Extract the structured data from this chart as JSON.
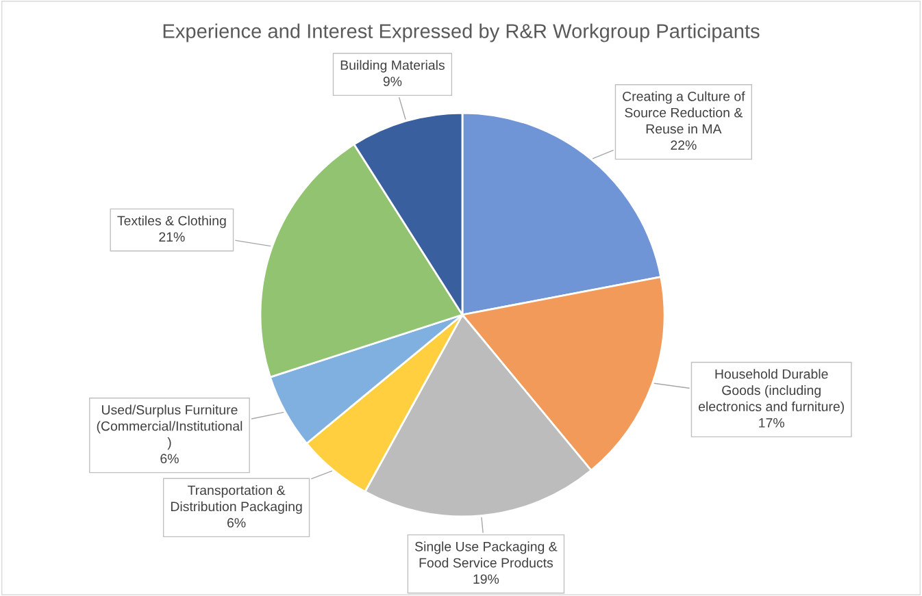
{
  "chart_data": {
    "type": "pie",
    "title": "Experience and Interest Expressed by R&R Workgroup Participants",
    "categories": [
      "Creating a Culture of\nSource Reduction &\nReuse in MA",
      "Household Durable\nGoods (including\nelectronics and furniture)",
      "Single Use Packaging &\nFood Service Products",
      "Transportation &\nDistribution Packaging",
      "Used/Surplus Furniture\n(Commercial/Institutional\n)",
      "Textiles & Clothing",
      "Building Materials"
    ],
    "values": [
      22,
      17,
      19,
      6,
      6,
      21,
      9
    ],
    "colors": [
      "#6f95d6",
      "#f29a5a",
      "#bcbcbc",
      "#ffcf40",
      "#7fb0e0",
      "#92c370",
      "#3a5f9e"
    ],
    "value_labels": [
      "22%",
      "17%",
      "19%",
      "6%",
      "6%",
      "21%",
      "9%"
    ],
    "legend": false
  }
}
